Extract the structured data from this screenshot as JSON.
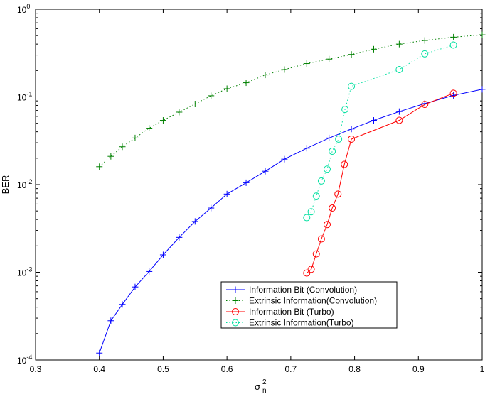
{
  "chart_data": {
    "type": "line",
    "xlabel": "σ",
    "xlabel_sup": "2",
    "xlabel_sub": "n",
    "ylabel": "BER",
    "xlim": [
      0.3,
      1.0
    ],
    "ylim": [
      0.0001,
      1
    ],
    "yscale": "log",
    "grid": false,
    "legend_position": "lower-right",
    "x_ticks": [
      0.3,
      0.4,
      0.5,
      0.6,
      0.7,
      0.8,
      0.9,
      1
    ],
    "x_tick_labels": [
      "0.3",
      "0.4",
      "0.5",
      "0.6",
      "0.7",
      "0.8",
      "0.9",
      "1"
    ],
    "y_ticks": [
      0.0001,
      0.001,
      0.01,
      0.1,
      1
    ],
    "y_tick_base": "10",
    "y_tick_exponents": [
      "-4",
      "-3",
      "-2",
      "-1",
      "0"
    ],
    "series": [
      {
        "name": "Information Bit (Convolution)",
        "color": "#0000ff",
        "line_style": "solid",
        "marker": "plus",
        "x": [
          0.4,
          0.418,
          0.436,
          0.456,
          0.478,
          0.5,
          0.525,
          0.55,
          0.575,
          0.6,
          0.63,
          0.66,
          0.69,
          0.725,
          0.76,
          0.795,
          0.83,
          0.87,
          0.91,
          0.955,
          1.0
        ],
        "y": [
          0.00012,
          0.00028,
          0.00043,
          0.00068,
          0.00102,
          0.00158,
          0.0025,
          0.0038,
          0.0054,
          0.0078,
          0.0105,
          0.0142,
          0.0195,
          0.026,
          0.034,
          0.043,
          0.054,
          0.068,
          0.084,
          0.104,
          0.122
        ]
      },
      {
        "name": "Extrinsic Information(Convolution)",
        "color": "#008000",
        "line_style": "dotted",
        "marker": "plus",
        "x": [
          0.4,
          0.418,
          0.436,
          0.456,
          0.478,
          0.5,
          0.525,
          0.55,
          0.575,
          0.6,
          0.63,
          0.66,
          0.69,
          0.725,
          0.76,
          0.795,
          0.83,
          0.87,
          0.91,
          0.955,
          1.0
        ],
        "y": [
          0.016,
          0.021,
          0.027,
          0.034,
          0.044,
          0.054,
          0.067,
          0.083,
          0.103,
          0.124,
          0.145,
          0.178,
          0.205,
          0.24,
          0.27,
          0.305,
          0.35,
          0.4,
          0.44,
          0.48,
          0.51
        ]
      },
      {
        "name": "Information Bit (Turbo)",
        "color": "#ff0000",
        "line_style": "solid",
        "marker": "circle",
        "x": [
          0.725,
          0.732,
          0.74,
          0.748,
          0.757,
          0.765,
          0.774,
          0.784,
          0.795,
          0.87,
          0.91,
          0.955
        ],
        "y": [
          0.00098,
          0.00108,
          0.00162,
          0.0024,
          0.0035,
          0.0054,
          0.0078,
          0.017,
          0.033,
          0.054,
          0.082,
          0.11
        ]
      },
      {
        "name": "Extrinsic Information(Turbo)",
        "color": "#00e0a0",
        "line_style": "dotted",
        "marker": "circle",
        "x": [
          0.725,
          0.732,
          0.74,
          0.748,
          0.757,
          0.765,
          0.775,
          0.785,
          0.795,
          0.87,
          0.91,
          0.955
        ],
        "y": [
          0.0042,
          0.0049,
          0.0074,
          0.011,
          0.015,
          0.024,
          0.033,
          0.072,
          0.132,
          0.205,
          0.31,
          0.39
        ]
      }
    ]
  }
}
